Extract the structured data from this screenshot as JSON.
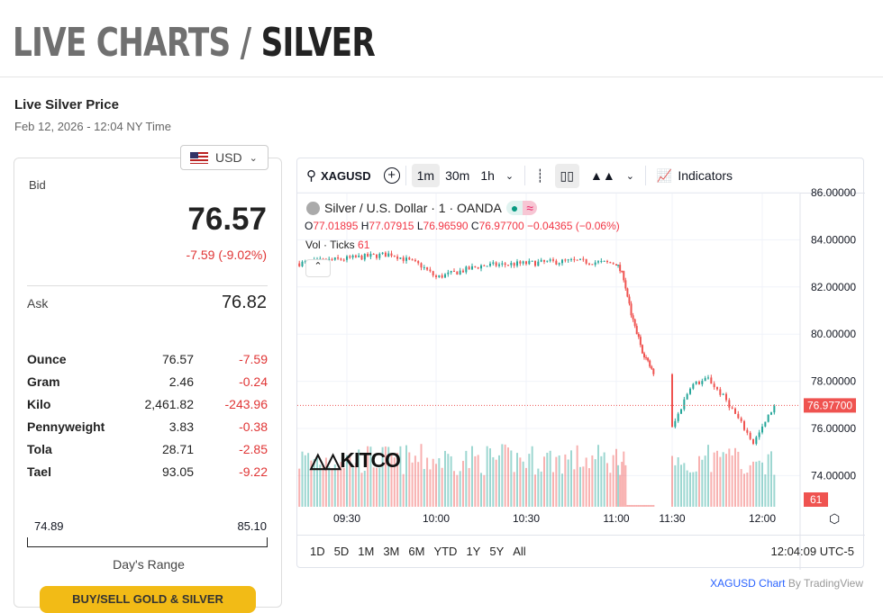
{
  "header": {
    "title_prefix": "LIVE CHARTS /",
    "title_metal": "SILVER"
  },
  "subheader": {
    "title": "Live Silver Price",
    "date": "Feb 12, 2026 - 12:04 NY Time"
  },
  "currency": {
    "selected": "USD",
    "icon": "us-flag-icon"
  },
  "quote": {
    "bid_label": "Bid",
    "bid": "76.57",
    "change": "-7.59 (-9.02%)",
    "ask_label": "Ask",
    "ask": "76.82",
    "down_color": "#e03535"
  },
  "units": [
    {
      "name": "Ounce",
      "price": "76.57",
      "change": "-7.59"
    },
    {
      "name": "Gram",
      "price": "2.46",
      "change": "-0.24"
    },
    {
      "name": "Kilo",
      "price": "2,461.82",
      "change": "-243.96"
    },
    {
      "name": "Pennyweight",
      "price": "3.83",
      "change": "-0.38"
    },
    {
      "name": "Tola",
      "price": "28.71",
      "change": "-2.85"
    },
    {
      "name": "Tael",
      "price": "93.05",
      "change": "-9.22"
    }
  ],
  "range": {
    "low": "74.89",
    "high": "85.10",
    "label": "Day's Range"
  },
  "buy_button": "BUY/SELL GOLD & SILVER",
  "toolbar": {
    "symbol": "XAGUSD",
    "intervals": [
      "1m",
      "30m",
      "1h"
    ],
    "active_interval": "1m",
    "indicators": "Indicators"
  },
  "legend": {
    "name": "Silver / U.S. Dollar · 1 · OANDA",
    "o": "O",
    "ov": "77.01895",
    "h": "H",
    "hv": "77.07915",
    "l": "L",
    "lv": "76.96590",
    "c": "C",
    "cv": "76.97700",
    "chg": "−0.04365 (−0.06%)",
    "vol": "Vol · Ticks",
    "volv": "61"
  },
  "chart_data": {
    "type": "candlestick",
    "symbol": "XAGUSD",
    "y_ticks": [
      "86.00000",
      "84.00000",
      "82.00000",
      "80.00000",
      "78.00000",
      "76.00000",
      "74.00000"
    ],
    "x_ticks": [
      "09:30",
      "10:00",
      "10:30",
      "11:00",
      "11:30",
      "12:00"
    ],
    "last_price": "76.97700",
    "last_volume": "61",
    "price_path": [
      [
        "09:14",
        83.0
      ],
      [
        "09:30",
        83.2
      ],
      [
        "09:45",
        83.4
      ],
      [
        "09:55",
        82.9
      ],
      [
        "10:00",
        82.4
      ],
      [
        "10:15",
        82.9
      ],
      [
        "10:30",
        83.0
      ],
      [
        "10:45",
        83.1
      ],
      [
        "11:00",
        83.0
      ],
      [
        "11:04",
        82.4
      ],
      [
        "11:08",
        80.8
      ],
      [
        "11:14",
        79.3
      ],
      [
        "11:20",
        78.3
      ],
      [
        "11:26",
        77.8
      ],
      [
        "11:30",
        76.0
      ],
      [
        "11:36",
        77.8
      ],
      [
        "11:42",
        78.1
      ],
      [
        "11:48",
        77.2
      ],
      [
        "11:53",
        76.2
      ],
      [
        "11:57",
        75.4
      ],
      [
        "12:00",
        76.0
      ],
      [
        "12:04",
        77.0
      ]
    ],
    "up_color": "#26a69a",
    "down_color": "#ef5350"
  },
  "periods": [
    "1D",
    "5D",
    "1M",
    "3M",
    "6M",
    "YTD",
    "1Y",
    "5Y",
    "All"
  ],
  "clock": "12:04:09 UTC-5",
  "attribution": {
    "link": "XAGUSD Chart",
    "by": "By TradingView"
  },
  "logo": "KITCO"
}
